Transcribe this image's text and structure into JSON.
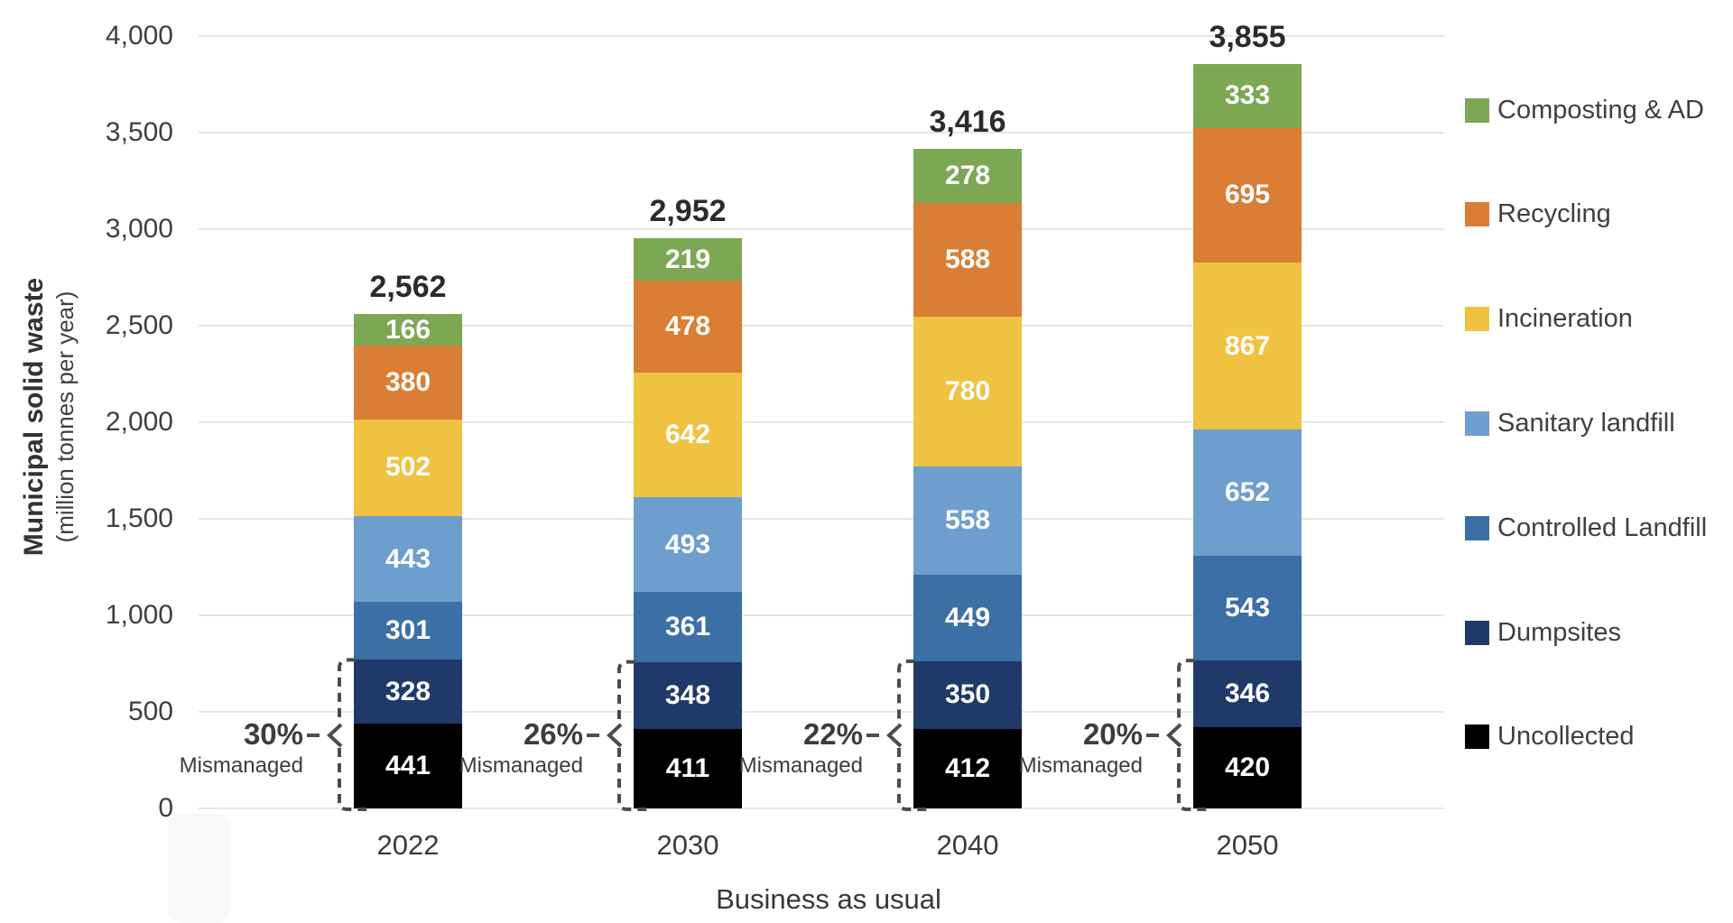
{
  "chart_data": {
    "type": "bar",
    "stacked": true,
    "title": "",
    "categories": [
      "2022",
      "2030",
      "2040",
      "2050"
    ],
    "series": [
      {
        "name": "Uncollected",
        "color": "#000000",
        "values": [
          441,
          411,
          412,
          420
        ]
      },
      {
        "name": "Dumpsites",
        "color": "#1F3A68",
        "values": [
          328,
          348,
          350,
          346
        ]
      },
      {
        "name": "Controlled Landfill",
        "color": "#3C6FA5",
        "values": [
          301,
          361,
          449,
          543
        ]
      },
      {
        "name": "Sanitary landfill",
        "color": "#6D9ECE",
        "values": [
          443,
          493,
          558,
          652
        ]
      },
      {
        "name": "Incineration",
        "color": "#EFC242",
        "values": [
          502,
          642,
          780,
          867
        ]
      },
      {
        "name": "Recycling",
        "color": "#D97E34",
        "values": [
          380,
          478,
          588,
          695
        ]
      },
      {
        "name": "Composting & AD",
        "color": "#7CA853",
        "values": [
          166,
          219,
          278,
          333
        ]
      }
    ],
    "totals": [
      "2,562",
      "2,952",
      "3,416",
      "3,855"
    ],
    "annotations": {
      "mismanaged_label": "Mismanaged",
      "mismanaged_percents": [
        "30%",
        "26%",
        "22%",
        "20%"
      ],
      "mismanaged_series": [
        "Uncollected",
        "Dumpsites"
      ]
    },
    "y_axis": {
      "title": "Municipal solid waste",
      "subtitle": "(million tonnes per year)",
      "ticks": [
        "0",
        "500",
        "1,000",
        "1,500",
        "2,000",
        "2,500",
        "3,000",
        "3,500",
        "4,000"
      ],
      "min": 0,
      "max": 4000,
      "grid": true
    },
    "x_axis": {
      "title": "Business as usual"
    },
    "legend": {
      "position": "right",
      "items": [
        "Composting & AD",
        "Recycling",
        "Incineration",
        "Sanitary landfill",
        "Controlled Landfill",
        "Dumpsites",
        "Uncollected"
      ]
    },
    "colors": {
      "gridline": "#e7e7e7",
      "bracket": "#4c4c4c",
      "segment_text": "#ffffff",
      "axis_text": "#3f3f3f",
      "total_text": "#2b2b2b"
    }
  }
}
